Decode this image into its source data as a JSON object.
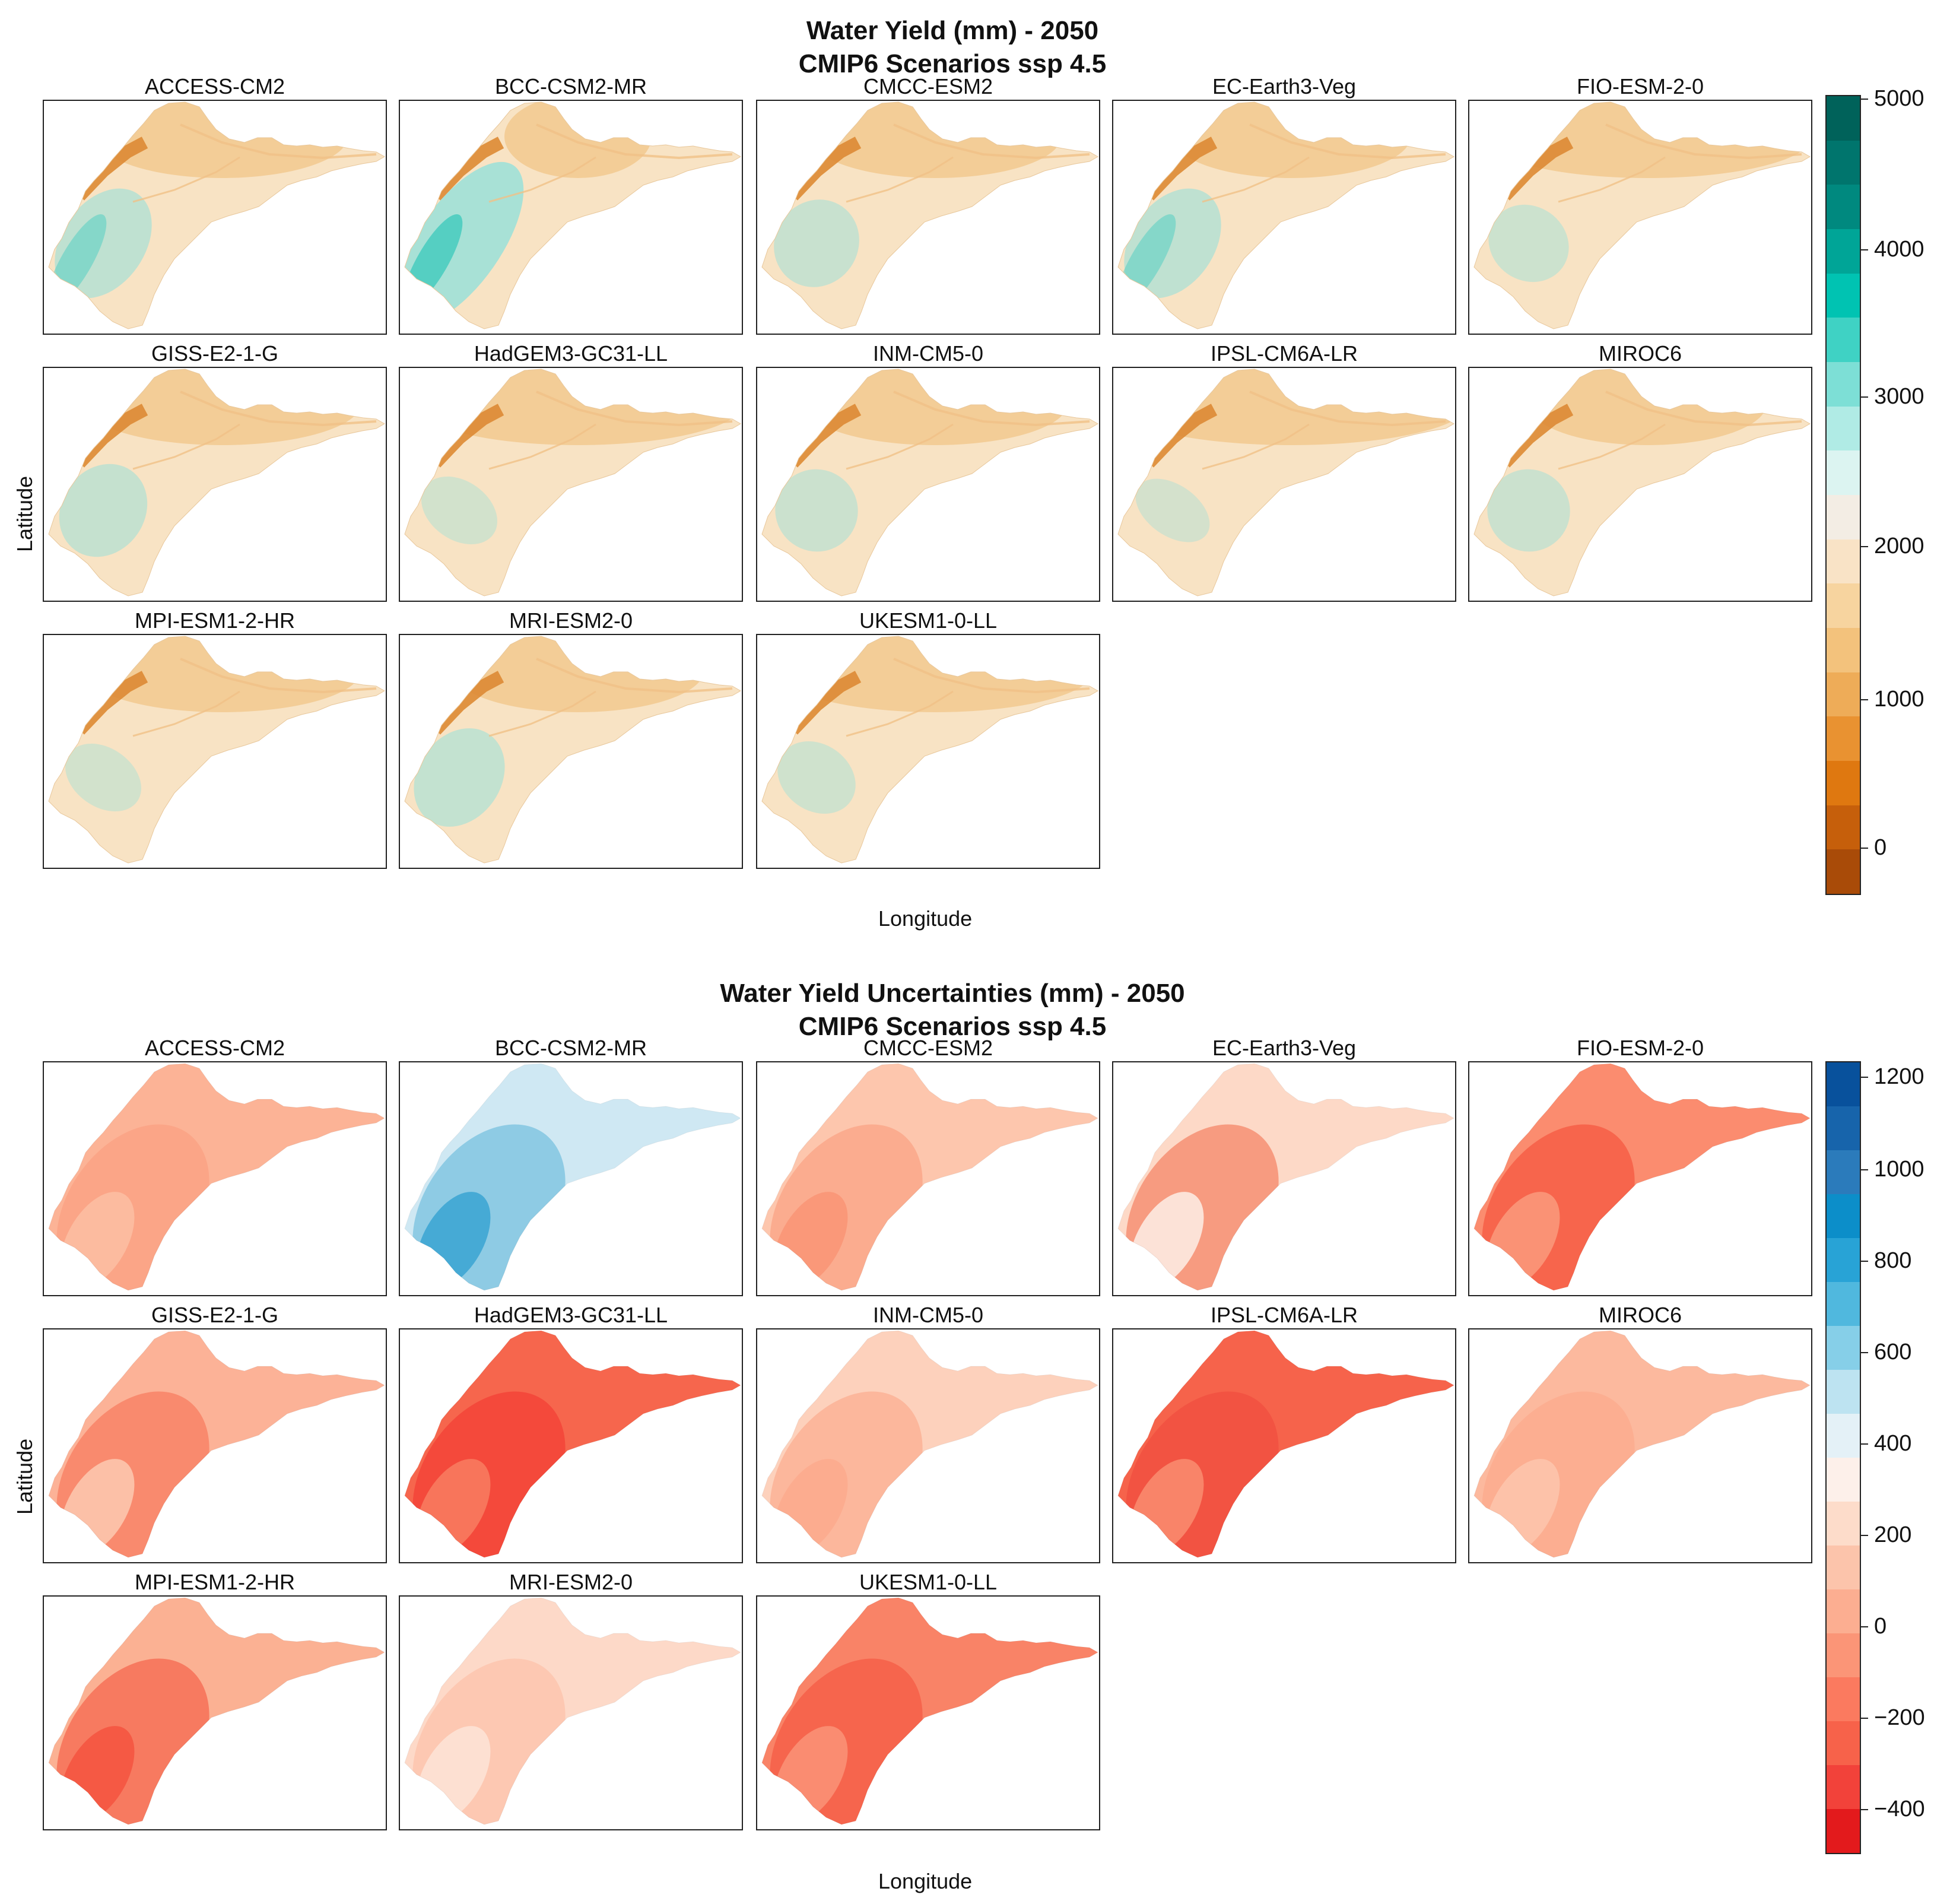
{
  "figure_top": {
    "title_line1": "Water Yield (mm) - 2050",
    "title_line2": "CMIP6 Scenarios ssp 4.5",
    "xlabel": "Longitude",
    "ylabel": "Latitude",
    "panels": [
      "ACCESS-CM2",
      "BCC-CSM2-MR",
      "CMCC-ESM2",
      "EC-Earth3-Veg",
      "FIO-ESM-2-0",
      "GISS-E2-1-G",
      "HadGEM3-GC31-LL",
      "INM-CM5-0",
      "IPSL-CM6A-LR",
      "MIROC6",
      "MPI-ESM1-2-HR",
      "MRI-ESM2-0",
      "UKESM1-0-LL"
    ],
    "colorbar": {
      "ticks": [
        "5000",
        "4000",
        "3000",
        "2000",
        "1000",
        "0"
      ],
      "colors_top_to_bottom": [
        "#00625a",
        "#00756d",
        "#00897f",
        "#00a597",
        "#00c3b2",
        "#3fd2c4",
        "#7ddfd6",
        "#b0ebe5",
        "#dcf4f1",
        "#f3ede4",
        "#f9e3c6",
        "#f7d49f",
        "#f3c27c",
        "#eeac58",
        "#e99231",
        "#df7810",
        "#c65f0b",
        "#a94b08"
      ]
    }
  },
  "figure_bottom": {
    "title_line1": "Water Yield Uncertainties (mm) - 2050",
    "title_line2": "CMIP6 Scenarios ssp 4.5",
    "xlabel": "Longitude",
    "ylabel": "Latitude",
    "panels": [
      "ACCESS-CM2",
      "BCC-CSM2-MR",
      "CMCC-ESM2",
      "EC-Earth3-Veg",
      "FIO-ESM-2-0",
      "GISS-E2-1-G",
      "HadGEM3-GC31-LL",
      "INM-CM5-0",
      "IPSL-CM6A-LR",
      "MIROC6",
      "MPI-ESM1-2-HR",
      "MRI-ESM2-0",
      "UKESM1-0-LL"
    ],
    "colorbar": {
      "ticks": [
        "1200",
        "1000",
        "800",
        "600",
        "400",
        "200",
        "0",
        "−200",
        "−400"
      ],
      "colors_top_to_bottom": [
        "#08519c",
        "#1764ab",
        "#2b7bbb",
        "#0c8ec9",
        "#28a3d6",
        "#50b8de",
        "#86cfe8",
        "#bde3f1",
        "#e4f1f7",
        "#fdf0ea",
        "#fddcca",
        "#fcc4ab",
        "#fcae91",
        "#fb9577",
        "#fb7a5f",
        "#f7624a",
        "#f2423a",
        "#e31a1c"
      ]
    }
  },
  "legend_colors": {
    "water_yield_low": "#d27a1d",
    "water_yield_mid": "#f6dfbd",
    "water_yield_high": "#0faea0",
    "uncert_neg_strong": "#ef3b2c",
    "uncert_neg_mild": "#fcbba1",
    "uncert_pos": "#6fb8db"
  }
}
